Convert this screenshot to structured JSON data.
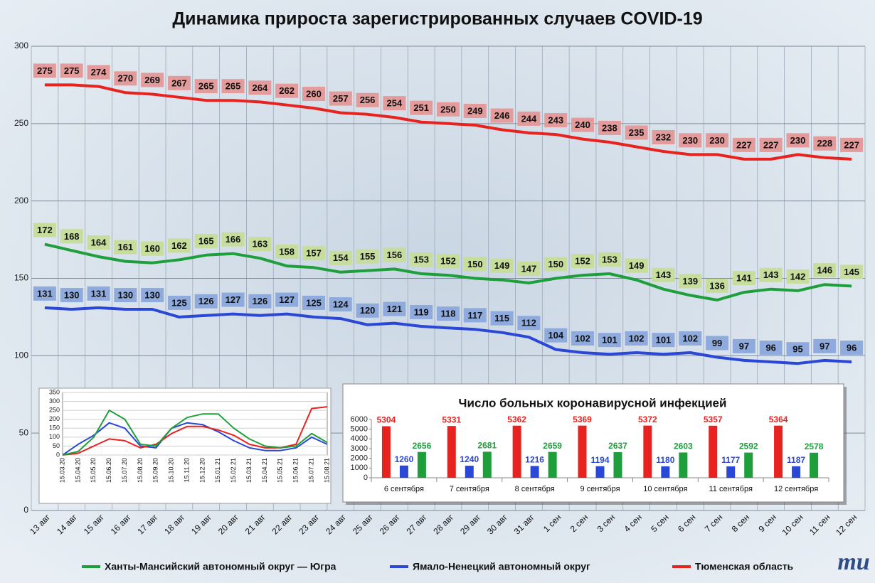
{
  "logo": "mu",
  "chart_data": [
    {
      "type": "line",
      "title": "Динамика прироста зарегистрированных случаев COVID-19",
      "categories": [
        "13 авг",
        "14 авг",
        "15 авг",
        "16 авг",
        "17 авг",
        "18 авг",
        "19 авг",
        "20 авг",
        "21 авг",
        "22 авг",
        "23 авг",
        "24 авг",
        "25 авг",
        "26 авг",
        "27 авг",
        "28 авг",
        "29 авг",
        "30 авг",
        "31 авг",
        "1 сен",
        "2 сен",
        "3 сен",
        "4 сен",
        "5 сен",
        "6 сен",
        "7 сен",
        "8 сен",
        "9 сен",
        "10 сен",
        "11 сен",
        "12 сен"
      ],
      "series": [
        {
          "name": "Ханты-Мансийский автономный округ — Югра",
          "color": "#1f9e3c",
          "label_fill": "#c6dd9c",
          "values": [
            172,
            168,
            164,
            161,
            160,
            162,
            165,
            166,
            163,
            158,
            157,
            154,
            155,
            156,
            153,
            152,
            150,
            149,
            147,
            150,
            152,
            153,
            149,
            143,
            139,
            136,
            141,
            143,
            142,
            146,
            145
          ]
        },
        {
          "name": "Ямало-Ненецкий автономный округ",
          "color": "#2a47d6",
          "label_fill": "#8faadc",
          "values": [
            131,
            130,
            131,
            130,
            130,
            125,
            126,
            127,
            126,
            127,
            125,
            124,
            120,
            121,
            119,
            118,
            117,
            115,
            112,
            104,
            102,
            101,
            102,
            101,
            102,
            99,
            97,
            96,
            95,
            97,
            96
          ]
        },
        {
          "name": "Тюменская область",
          "color": "#e8231f",
          "label_fill": "#e39b9b",
          "values": [
            275,
            275,
            274,
            270,
            269,
            267,
            265,
            265,
            264,
            262,
            260,
            257,
            256,
            254,
            251,
            250,
            249,
            246,
            244,
            243,
            240,
            238,
            235,
            232,
            230,
            230,
            227,
            227,
            230,
            228,
            227
          ]
        }
      ],
      "ylim": [
        0,
        300
      ],
      "yticks": [
        0,
        50,
        100,
        150,
        200,
        250,
        300
      ],
      "grid": true,
      "legend": "bottom"
    },
    {
      "type": "line",
      "categories": [
        "15.03.20",
        "15.04.20",
        "15.05.20",
        "15.06.20",
        "15.07.20",
        "15.08.20",
        "15.09.20",
        "15.10.20",
        "15.11.20",
        "15.12.20",
        "15.01.21",
        "15.02.21",
        "15.03.21",
        "15.04.21",
        "15.05.21",
        "15.06.21",
        "15.07.21",
        "15.08.21"
      ],
      "series": [
        {
          "color": "#2a47d6",
          "values": [
            0,
            60,
            110,
            180,
            150,
            50,
            40,
            150,
            180,
            170,
            130,
            80,
            40,
            25,
            25,
            40,
            100,
            60
          ]
        },
        {
          "color": "#e8231f",
          "values": [
            0,
            10,
            50,
            90,
            80,
            40,
            60,
            120,
            160,
            160,
            140,
            110,
            60,
            40,
            40,
            60,
            260,
            270
          ]
        },
        {
          "color": "#1f9e3c",
          "values": [
            0,
            20,
            100,
            250,
            200,
            60,
            50,
            150,
            210,
            230,
            230,
            150,
            90,
            50,
            40,
            50,
            120,
            70
          ]
        }
      ],
      "ylim": [
        0,
        350
      ],
      "yticks": [
        0,
        50,
        100,
        150,
        200,
        250,
        300,
        350
      ],
      "grid": true
    },
    {
      "type": "bar",
      "title": "Число больных коронавирусной  инфекцией",
      "categories": [
        "6 сентября",
        "7 сентября",
        "8 сентября",
        "9 сентября",
        "10 сентября",
        "11 сентября",
        "12 сентября"
      ],
      "series": [
        {
          "color": "#e8231f",
          "values": [
            5304,
            5331,
            5362,
            5369,
            5372,
            5357,
            5364
          ]
        },
        {
          "color": "#2a47d6",
          "values": [
            1260,
            1240,
            1216,
            1194,
            1180,
            1177,
            1187
          ]
        },
        {
          "color": "#1f9e3c",
          "values": [
            2656,
            2681,
            2659,
            2637,
            2603,
            2592,
            2578
          ]
        }
      ],
      "ylim": [
        0,
        6000
      ],
      "yticks": [
        0,
        1000,
        2000,
        3000,
        4000,
        5000,
        6000
      ],
      "grid": false
    }
  ]
}
